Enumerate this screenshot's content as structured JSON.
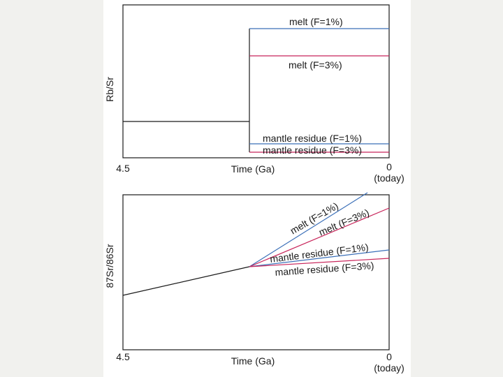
{
  "colors": {
    "page_background": "#f1f1ee",
    "panel_background": "#ffffff",
    "axis": "#1a1a1a",
    "melt_1pct": "#3a6fb8",
    "melt_3pct": "#c8245a",
    "residue_1pct": "#3a6fb8",
    "residue_3pct": "#c8245a",
    "evolution_line": "#1a1a1a"
  },
  "panels": {
    "top": {
      "ylabel": "Rb/Sr",
      "xlabel": "Time (Ga)",
      "tick_start": "4.5",
      "tick_end": "0",
      "tick_end_note": "(today)",
      "labels": {
        "melt_1": "melt (F=1%)",
        "melt_3": "melt (F=3%)",
        "residue_1": "mantle residue (F=1%)",
        "residue_3": "mantle residue (F=3%)"
      }
    },
    "bottom": {
      "ylabel": "87Sr/86Sr",
      "xlabel": "Time (Ga)",
      "tick_start": "4.5",
      "tick_end": "0",
      "tick_end_note": "(today)",
      "labels": {
        "melt_1": "melt (F=1%)",
        "melt_3": "melt (F=3%)",
        "residue_1": "mantle residue (F=1%)",
        "residue_3": "mantle residue (F=3%)"
      }
    }
  }
}
